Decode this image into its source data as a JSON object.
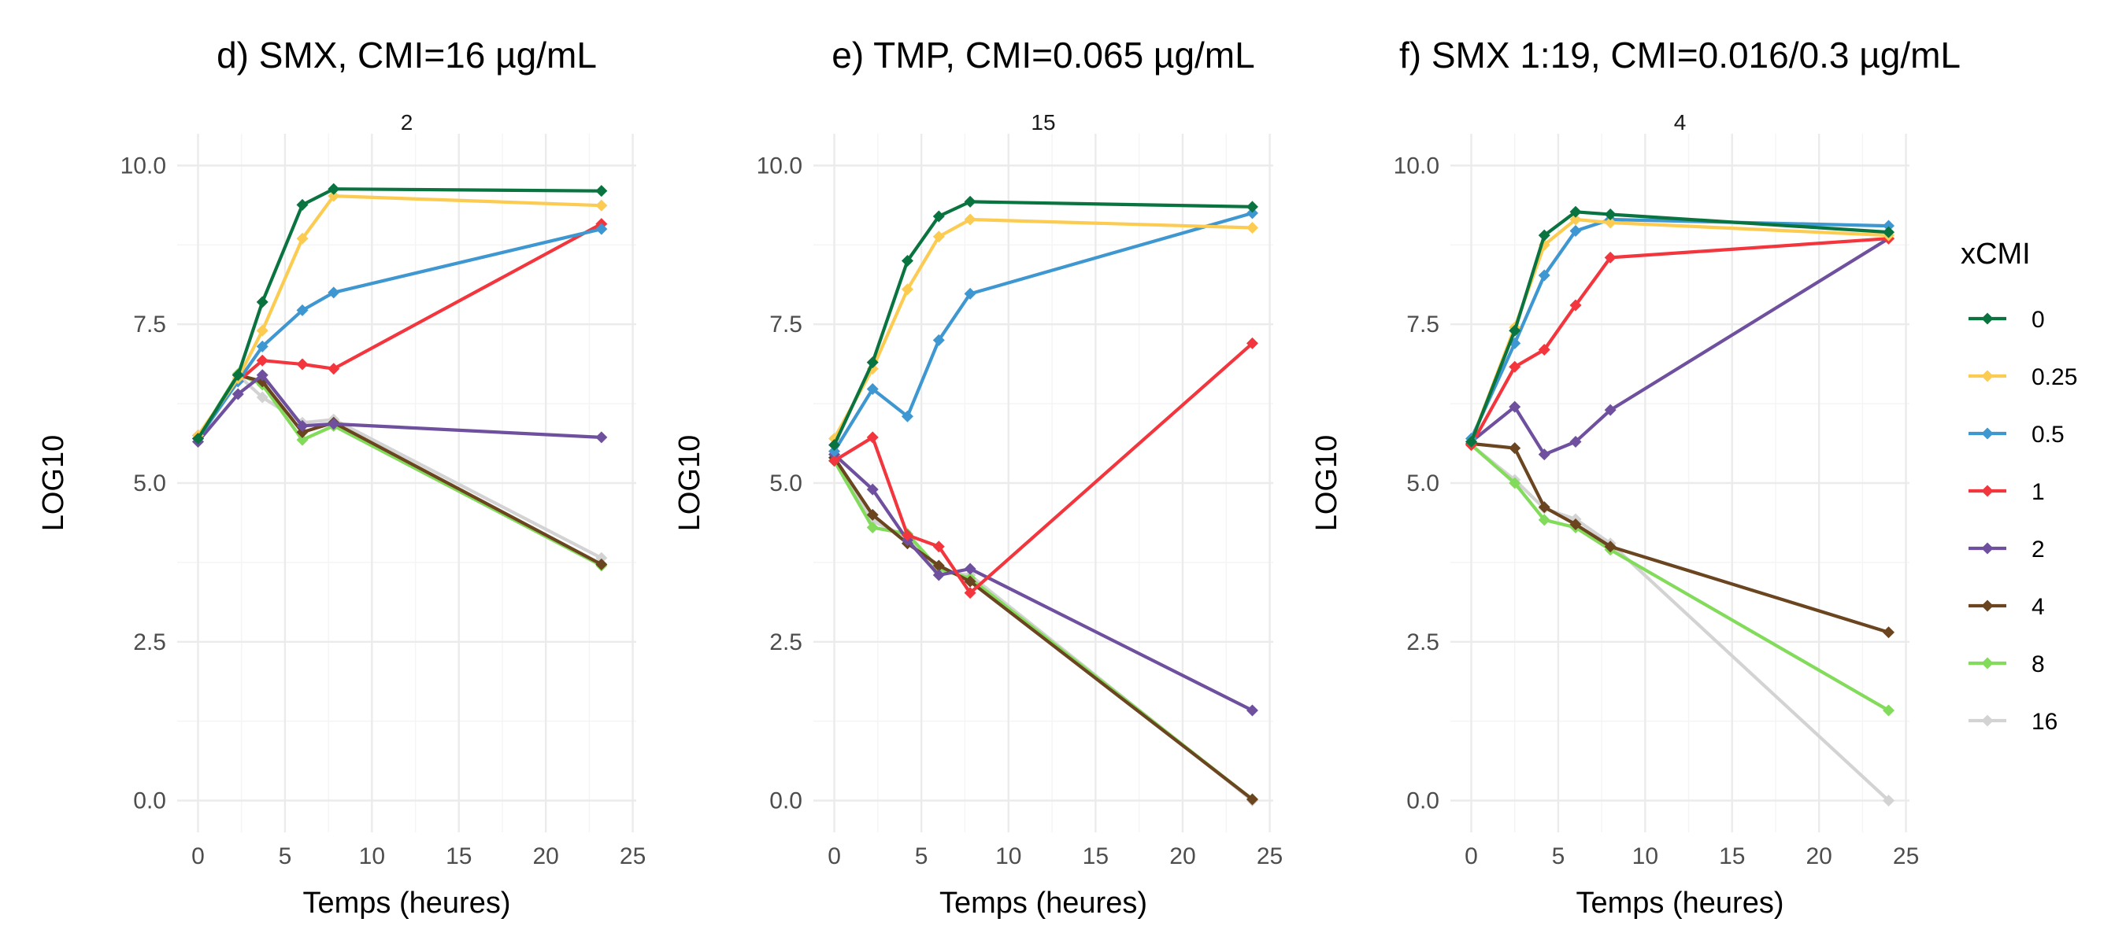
{
  "chart_data": [
    {
      "type": "line",
      "title": "d) SMX, CMI=16 µg/mL",
      "strip": "2",
      "xlabel": "Temps (heures)",
      "ylabel": "LOG10",
      "xlim": [
        -1.2,
        25.2
      ],
      "ylim": [
        -0.5,
        10.5
      ],
      "xticks": [
        0,
        5,
        10,
        15,
        20,
        25
      ],
      "yticks": [
        0.0,
        2.5,
        5.0,
        7.5,
        10.0
      ],
      "ytick_labels": [
        "0.0",
        "2.5",
        "5.0",
        "7.5",
        "10.0"
      ],
      "series": [
        {
          "name": "0",
          "x": [
            0,
            2.3,
            3.7,
            6,
            7.8,
            23.2
          ],
          "y": [
            5.7,
            6.7,
            7.85,
            9.38,
            9.63,
            9.6
          ]
        },
        {
          "name": "0.25",
          "x": [
            0,
            2.3,
            3.7,
            6,
            7.8,
            23.2
          ],
          "y": [
            5.75,
            6.65,
            7.4,
            8.85,
            9.52,
            9.37
          ]
        },
        {
          "name": "0.5",
          "x": [
            0,
            2.3,
            3.7,
            6,
            7.8,
            23.2
          ],
          "y": [
            5.7,
            6.6,
            7.15,
            7.72,
            8.0,
            9.0
          ]
        },
        {
          "name": "1",
          "x": [
            0,
            2.3,
            3.7,
            6,
            7.8,
            23.2
          ],
          "y": [
            5.75,
            6.6,
            6.93,
            6.87,
            6.8,
            9.08
          ]
        },
        {
          "name": "2",
          "x": [
            0,
            2.3,
            3.7,
            6,
            7.8,
            23.2
          ],
          "y": [
            5.65,
            6.4,
            6.7,
            5.9,
            5.93,
            5.72
          ]
        },
        {
          "name": "4",
          "x": [
            0,
            2.3,
            3.7,
            6,
            7.8,
            23.2
          ],
          "y": [
            5.7,
            6.7,
            6.6,
            5.8,
            5.95,
            3.72
          ]
        },
        {
          "name": "8",
          "x": [
            0,
            2.3,
            3.7,
            6,
            7.8,
            23.2
          ],
          "y": [
            5.7,
            6.72,
            6.55,
            5.68,
            5.9,
            3.7
          ]
        },
        {
          "name": "16",
          "x": [
            0,
            2.3,
            3.7,
            6,
            7.8,
            23.2
          ],
          "y": [
            5.65,
            6.7,
            6.35,
            5.95,
            6.0,
            3.82
          ]
        }
      ]
    },
    {
      "type": "line",
      "title": "e) TMP, CMI=0.065 µg/mL",
      "strip": "15",
      "xlabel": "Temps (heures)",
      "ylabel": "LOG10",
      "xlim": [
        -1.2,
        25.2
      ],
      "ylim": [
        -0.5,
        10.5
      ],
      "xticks": [
        0,
        5,
        10,
        15,
        20,
        25
      ],
      "yticks": [
        0.0,
        2.5,
        5.0,
        7.5,
        10.0
      ],
      "ytick_labels": [
        "0.0",
        "2.5",
        "5.0",
        "7.5",
        "10.0"
      ],
      "series": [
        {
          "name": "0",
          "x": [
            0,
            2.2,
            4.2,
            6,
            7.8,
            24
          ],
          "y": [
            5.6,
            6.9,
            8.5,
            9.2,
            9.43,
            9.35
          ]
        },
        {
          "name": "0.25",
          "x": [
            0,
            2.2,
            4.2,
            6,
            7.8,
            24
          ],
          "y": [
            5.7,
            6.8,
            8.05,
            8.88,
            9.15,
            9.02
          ]
        },
        {
          "name": "0.5",
          "x": [
            0,
            2.2,
            4.2,
            6,
            7.8,
            24
          ],
          "y": [
            5.5,
            6.48,
            6.05,
            7.25,
            7.98,
            9.25
          ]
        },
        {
          "name": "1",
          "x": [
            0,
            2.2,
            4.2,
            6,
            7.8,
            24
          ],
          "y": [
            5.35,
            5.72,
            4.18,
            4.0,
            3.27,
            7.2
          ]
        },
        {
          "name": "2",
          "x": [
            0,
            2.2,
            4.2,
            6,
            7.8,
            24
          ],
          "y": [
            5.45,
            4.9,
            4.1,
            3.55,
            3.65,
            1.42
          ]
        },
        {
          "name": "4",
          "x": [
            0,
            2.2,
            4.2,
            6,
            7.8,
            24
          ],
          "y": [
            5.4,
            4.5,
            4.05,
            3.7,
            3.45,
            0.02
          ]
        },
        {
          "name": "8",
          "x": [
            0,
            2.2,
            4.2,
            6,
            7.8,
            24
          ],
          "y": [
            5.35,
            4.3,
            4.2,
            3.65,
            3.5,
            0.02
          ]
        },
        {
          "name": "16",
          "x": [
            0,
            2.2,
            4.2,
            6,
            7.8,
            24
          ],
          "y": [
            5.4,
            4.4,
            4.15,
            3.6,
            3.55,
            0.0
          ]
        }
      ]
    },
    {
      "type": "line",
      "title": "f) SMX 1:19, CMI=0.016/0.3 µg/mL",
      "strip": "4",
      "xlabel": "Temps (heures)",
      "ylabel": "LOG10",
      "xlim": [
        -1.2,
        25.2
      ],
      "ylim": [
        -0.5,
        10.5
      ],
      "xticks": [
        0,
        5,
        10,
        15,
        20,
        25
      ],
      "yticks": [
        0.0,
        2.5,
        5.0,
        7.5,
        10.0
      ],
      "ytick_labels": [
        "0.0",
        "2.5",
        "5.0",
        "7.5",
        "10.0"
      ],
      "series": [
        {
          "name": "0",
          "x": [
            0,
            2.5,
            4.2,
            6,
            8,
            24
          ],
          "y": [
            5.65,
            7.4,
            8.9,
            9.27,
            9.23,
            8.95
          ]
        },
        {
          "name": "0.25",
          "x": [
            0,
            2.5,
            4.2,
            6,
            8,
            24
          ],
          "y": [
            5.65,
            7.45,
            8.75,
            9.15,
            9.1,
            8.9
          ]
        },
        {
          "name": "0.5",
          "x": [
            0,
            2.5,
            4.2,
            6,
            8,
            24
          ],
          "y": [
            5.7,
            7.2,
            8.27,
            8.97,
            9.15,
            9.05
          ]
        },
        {
          "name": "1",
          "x": [
            0,
            2.5,
            4.2,
            6,
            8,
            24
          ],
          "y": [
            5.6,
            6.83,
            7.1,
            7.8,
            8.55,
            8.85
          ]
        },
        {
          "name": "2",
          "x": [
            0,
            2.5,
            4.2,
            6,
            8,
            24
          ],
          "y": [
            5.65,
            6.2,
            5.45,
            5.65,
            6.15,
            8.85
          ]
        },
        {
          "name": "4",
          "x": [
            0,
            2.5,
            4.2,
            6,
            8,
            24
          ],
          "y": [
            5.62,
            5.55,
            4.62,
            4.35,
            4.0,
            2.65
          ]
        },
        {
          "name": "8",
          "x": [
            0,
            2.5,
            4.2,
            6,
            8,
            24
          ],
          "y": [
            5.6,
            5.0,
            4.42,
            4.3,
            3.95,
            1.42
          ]
        },
        {
          "name": "16",
          "x": [
            0,
            2.5,
            4.2,
            6,
            8,
            24
          ],
          "y": [
            5.6,
            5.05,
            4.6,
            4.43,
            4.05,
            0.0
          ]
        }
      ]
    }
  ],
  "legend": {
    "title": "xCMI",
    "placement": "right",
    "items": [
      {
        "label": "0",
        "color": "#0A7440"
      },
      {
        "label": "0.25",
        "color": "#FCCC52"
      },
      {
        "label": "0.5",
        "color": "#3E97D0"
      },
      {
        "label": "1",
        "color": "#F3363D"
      },
      {
        "label": "2",
        "color": "#6F509F"
      },
      {
        "label": "4",
        "color": "#6A4520"
      },
      {
        "label": "8",
        "color": "#82DB5A"
      },
      {
        "label": "16",
        "color": "#D3D3D3"
      }
    ]
  }
}
